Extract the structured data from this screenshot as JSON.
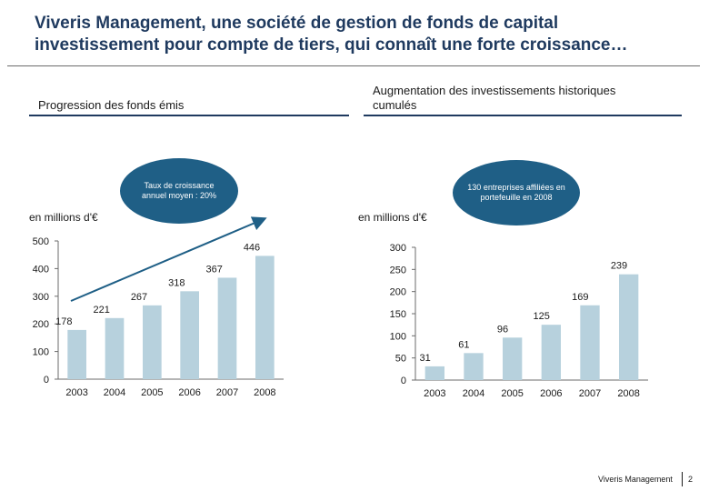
{
  "header": {
    "title_line1": "Viveris Management, une société de gestion de fonds de capital",
    "title_line2": "investissement pour compte de tiers, qui connaît une forte croissance…"
  },
  "left_panel": {
    "title": "Progression des fonds émis",
    "unit": "en millions d'€",
    "bubble": "Taux de croissance annuel moyen : 20%"
  },
  "right_panel": {
    "title_line1": "Augmentation des investissements historiques",
    "title_line2": "cumulés",
    "unit": "en millions d'€",
    "bubble": "130 entreprises affiliées en portefeuille en 2008"
  },
  "footer": {
    "brand": "Viveris Management",
    "page": "2"
  },
  "colors": {
    "bar": "#b7d1dd",
    "accent": "#1f5f86",
    "title": "#1f3a5f",
    "rule": "#1f3a5f"
  },
  "chart_data": [
    {
      "type": "bar",
      "categories": [
        "2003",
        "2004",
        "2005",
        "2006",
        "2007",
        "2008"
      ],
      "values": [
        178,
        221,
        267,
        318,
        367,
        446
      ],
      "ylim": [
        0,
        500
      ],
      "yticks": [
        0,
        100,
        200,
        300,
        400,
        500
      ],
      "trend_arrow": true,
      "grid": false
    },
    {
      "type": "bar",
      "categories": [
        "2003",
        "2004",
        "2005",
        "2006",
        "2007",
        "2008"
      ],
      "values": [
        31,
        61,
        96,
        125,
        169,
        239
      ],
      "ylim": [
        0,
        300
      ],
      "yticks": [
        0,
        50,
        100,
        150,
        200,
        250,
        300
      ],
      "grid": false
    }
  ]
}
